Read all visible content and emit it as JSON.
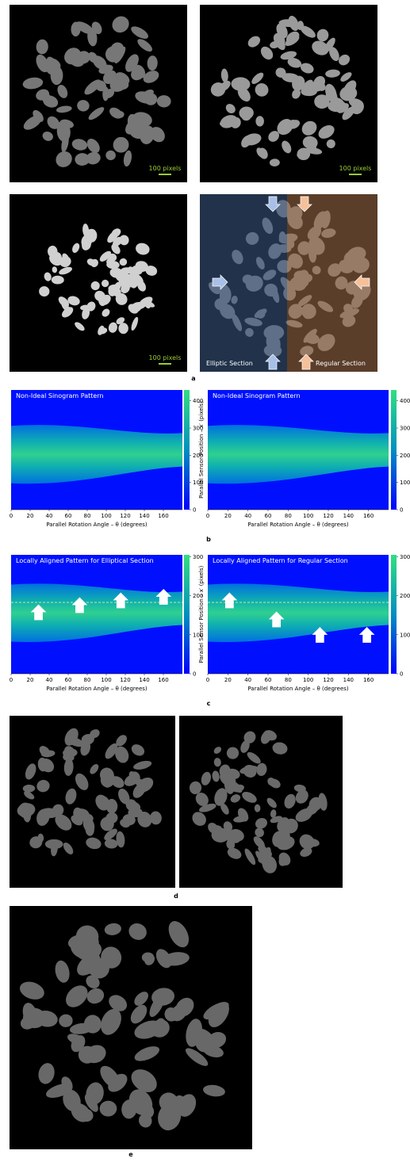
{
  "panel_a": {
    "label": "a",
    "scale_bar_labels": [
      "100 pixels",
      "100 pixels",
      "100 pixels"
    ],
    "section_labels": [
      "Elliptic Section",
      "Regular Section"
    ]
  },
  "panel_b": {
    "label": "b",
    "plots": [
      {
        "title": "Non-Ideal Sinogram Pattern",
        "xlabel": "Parallel Rotation Angle – θ (degrees)",
        "xlim": [
          0,
          180
        ],
        "xticks": [
          0,
          20,
          40,
          60,
          80,
          100,
          120,
          140,
          160
        ],
        "cbar_lim": [
          0,
          440
        ],
        "cbar_ticks": [
          0,
          100,
          200,
          300,
          400
        ]
      },
      {
        "title": "Non-Ideal Sinogram Pattern",
        "xlabel": "Parallel Rotation Angle – θ (degrees)",
        "ylabel": "Parallel Sensor Position – x′ (pixels)",
        "xlim": [
          0,
          180
        ],
        "xticks": [
          0,
          20,
          40,
          60,
          80,
          100,
          120,
          140,
          160
        ],
        "cbar_lim": [
          0,
          440
        ],
        "cbar_ticks": [
          0,
          100,
          200,
          300,
          400
        ]
      }
    ]
  },
  "panel_c": {
    "label": "c",
    "plots": [
      {
        "title": "Locally Aligned Pattern for Elliptical Section",
        "xlabel": "Parallel Rotation Angle – θ (degrees)",
        "xlim": [
          0,
          180
        ],
        "xticks": [
          0,
          20,
          40,
          60,
          80,
          100,
          120,
          140,
          160
        ],
        "cbar_lim": [
          0,
          305
        ],
        "cbar_ticks": [
          0,
          100,
          200,
          300
        ]
      },
      {
        "title": "Locally Aligned Pattern for Regular Section",
        "xlabel": "Parallel Rotation Angle – θ (degrees)",
        "ylabel": "Parallel Sensor Position – x′ (pixels)",
        "xlim": [
          0,
          180
        ],
        "xticks": [
          0,
          20,
          40,
          60,
          80,
          100,
          120,
          140,
          160
        ],
        "cbar_lim": [
          0,
          305
        ],
        "cbar_ticks": [
          0,
          100,
          200,
          300
        ]
      }
    ]
  },
  "panel_d": {
    "label": "d"
  },
  "panel_e": {
    "label": "e"
  }
}
